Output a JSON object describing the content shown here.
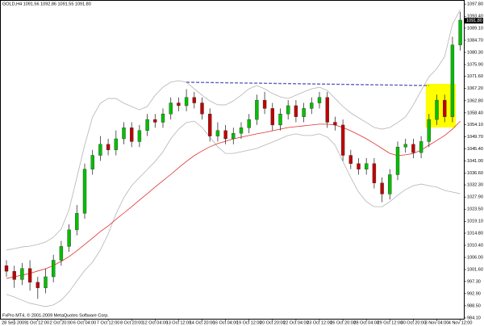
{
  "chart_data": {
    "type": "candlestick",
    "title": "GOLD,H4 1091.56 1092.86 1091.55 1091.80",
    "footer": "FxPro MT4, © 2001-2009 MetaQuotes Software Corp.",
    "categories": [
      null,
      "28 Sep 2009",
      null,
      null,
      "1 Oct 12:00",
      null,
      null,
      "2 Oct 20:00",
      null,
      null,
      "6 Oct 04:00",
      null,
      null,
      "7 Oct 12:00",
      null,
      null,
      "8 Oct 20:00",
      null,
      null,
      "12 Oct 04:00",
      null,
      null,
      "13 Oct 12:00",
      null,
      null,
      "14 Oct 20:00",
      null,
      null,
      "16 Oct 04:00",
      null,
      null,
      "19 Oct 12:00",
      null,
      null,
      "20 Oct 20:00",
      null,
      null,
      "22 Oct 04:00",
      null,
      null,
      "23 Oct 12:00",
      null,
      null,
      "26 Oct 20:00",
      null,
      null,
      "28 Oct 04:00",
      null,
      null,
      "29 Oct 12:00",
      null,
      null,
      "30 Oct 20:00",
      null,
      null,
      "3 Nov 04:00",
      null,
      null,
      "4 Nov 12:00"
    ],
    "open": [
      1003,
      1001,
      998,
      1002,
      997,
      995,
      999,
      1005,
      1010,
      1016,
      1022,
      1038,
      1043,
      1047,
      1045,
      1049,
      1053,
      1048,
      1052,
      1056,
      1055,
      1058,
      1062,
      1061,
      1064,
      1062,
      1058,
      1050,
      1052,
      1049,
      1051,
      1053,
      1056,
      1063,
      1060,
      1054,
      1058,
      1061,
      1057,
      1060,
      1062,
      1064,
      1055,
      1054,
      1043,
      1040,
      1038,
      1040,
      1033,
      1029,
      1036,
      1046,
      1047,
      1044,
      1048,
      1056,
      1063,
      1057,
      1083
    ],
    "high": [
      1005,
      1003,
      1004,
      1005,
      999,
      1002,
      1007,
      1012,
      1018,
      1025,
      1040,
      1045,
      1050,
      1049,
      1052,
      1055,
      1055,
      1054,
      1058,
      1058,
      1060,
      1064,
      1064,
      1067,
      1066,
      1064,
      1060,
      1055,
      1054,
      1053,
      1055,
      1058,
      1065,
      1066,
      1062,
      1060,
      1063,
      1063,
      1062,
      1064,
      1066,
      1066,
      1057,
      1056,
      1045,
      1042,
      1042,
      1042,
      1035,
      1038,
      1048,
      1049,
      1049,
      1050,
      1058,
      1065,
      1065,
      1086,
      1095
    ],
    "low": [
      999,
      995,
      996,
      994,
      991,
      993,
      997,
      1003,
      1008,
      1014,
      1020,
      1036,
      1041,
      1043,
      1043,
      1047,
      1046,
      1046,
      1050,
      1053,
      1053,
      1056,
      1059,
      1059,
      1060,
      1056,
      1048,
      1048,
      1047,
      1047,
      1049,
      1051,
      1054,
      1058,
      1052,
      1052,
      1056,
      1055,
      1055,
      1058,
      1060,
      1053,
      1052,
      1041,
      1038,
      1036,
      1036,
      1031,
      1026,
      1027,
      1034,
      1044,
      1042,
      1042,
      1046,
      1054,
      1055,
      1055,
      1081
    ],
    "close": [
      1001,
      998,
      1002,
      997,
      995,
      999,
      1005,
      1010,
      1016,
      1022,
      1038,
      1043,
      1047,
      1045,
      1049,
      1053,
      1048,
      1052,
      1056,
      1055,
      1058,
      1062,
      1061,
      1064,
      1062,
      1058,
      1050,
      1052,
      1049,
      1051,
      1053,
      1056,
      1063,
      1060,
      1054,
      1058,
      1061,
      1057,
      1060,
      1062,
      1064,
      1055,
      1054,
      1043,
      1040,
      1038,
      1040,
      1033,
      1029,
      1036,
      1046,
      1047,
      1044,
      1048,
      1056,
      1063,
      1057,
      1083,
      1092
    ],
    "up_color": "#00c000",
    "down_color": "#c00000",
    "lines": [
      {
        "color": "#b4b4b4",
        "values": [
          1008.7,
          1009.2,
          1009.8,
          1010.1,
          1010.7,
          1011.6,
          1013.3,
          1016.3,
          1023.3,
          1035.0,
          1046.7,
          1056.9,
          1061.9,
          1063.6,
          1063.6,
          1061.9,
          1060.7,
          1059.5,
          1060.7,
          1064.8,
          1067.7,
          1069.5,
          1070.1,
          1069.5,
          1067.1,
          1064.8,
          1062.7,
          1061.3,
          1061.3,
          1062.7,
          1064.8,
          1067.1,
          1068.3,
          1067.1,
          1065.4,
          1064.2,
          1063.6,
          1064.8,
          1066.0,
          1067.1,
          1067.7,
          1066.5,
          1063.6,
          1060.7,
          1058.4,
          1056.6,
          1054.9,
          1053.1,
          1052.5,
          1053.1,
          1054.9,
          1056.9,
          1061.3,
          1066.5,
          1071.5,
          1074.4,
          1078.8,
          1090.5,
          1095.8
        ]
      },
      {
        "color": "#b4b4b4",
        "values": [
          992.6,
          991.7,
          990.5,
          989.4,
          988.8,
          988.2,
          988.8,
          990.5,
          993.5,
          997.5,
          1001.3,
          1004.3,
          1008.7,
          1014.5,
          1021.8,
          1027.7,
          1032.0,
          1035.0,
          1037.9,
          1040.8,
          1044.3,
          1049.0,
          1052.5,
          1054.9,
          1055.4,
          1053.1,
          1049.6,
          1046.1,
          1043.7,
          1043.7,
          1044.3,
          1044.9,
          1045.5,
          1046.7,
          1047.8,
          1049.0,
          1050.2,
          1050.8,
          1050.2,
          1050.2,
          1050.8,
          1049.6,
          1046.7,
          1040.8,
          1035.0,
          1029.7,
          1026.2,
          1024.4,
          1024.4,
          1026.2,
          1028.5,
          1030.6,
          1032.0,
          1032.6,
          1032.0,
          1031.5,
          1030.3,
          1029.7,
          1029.1
        ]
      },
      {
        "color": "#e03030",
        "values": [
          998.4,
          999.0,
          999.6,
          1000.2,
          1001.1,
          1001.9,
          1003.1,
          1004.6,
          1006.3,
          1008.4,
          1010.7,
          1013.0,
          1015.4,
          1017.4,
          1019.8,
          1022.1,
          1024.4,
          1026.8,
          1029.1,
          1031.5,
          1033.8,
          1036.1,
          1038.5,
          1040.8,
          1042.9,
          1044.6,
          1046.1,
          1047.3,
          1048.1,
          1049.0,
          1049.6,
          1050.2,
          1050.8,
          1051.3,
          1051.9,
          1052.5,
          1053.1,
          1053.4,
          1053.7,
          1054.0,
          1054.3,
          1054.3,
          1054.0,
          1053.1,
          1051.9,
          1050.5,
          1049.0,
          1047.3,
          1045.5,
          1043.7,
          1042.9,
          1043.2,
          1043.7,
          1044.9,
          1046.7,
          1048.4,
          1050.2,
          1052.5,
          1055.4
        ]
      }
    ],
    "trendline": {
      "from": 23,
      "to": 54,
      "values": [
        1069.5,
        1068.3
      ],
      "color": "#6060c0"
    },
    "highlight": {
      "from": 54,
      "to": 57,
      "range": [
        1053.1,
        1068.9
      ],
      "color": "#ffff00"
    },
    "current_price": {
      "value": 1091.8,
      "label": "1091.80"
    },
    "ylim": [
      983.5,
      1099.3
    ],
    "yticks": [
      {
        "value": 1097.8,
        "label": "1097.80"
      },
      {
        "value": 1093.4,
        "label": "1093.40"
      },
      {
        "value": 1089.1,
        "label": "1089.10"
      },
      {
        "value": 1084.7,
        "label": "1084.70"
      },
      {
        "value": 1080.3,
        "label": "1080.30"
      },
      {
        "value": 1075.9,
        "label": "1075.90"
      },
      {
        "value": 1071.6,
        "label": "1071.60"
      },
      {
        "value": 1067.2,
        "label": "1067.20"
      },
      {
        "value": 1062.8,
        "label": "1062.80"
      },
      {
        "value": 1058.4,
        "label": "1058.40"
      },
      {
        "value": 1054.1,
        "label": "1054.10"
      },
      {
        "value": 1049.7,
        "label": "1049.70"
      },
      {
        "value": 1045.4,
        "label": "1045.40"
      },
      {
        "value": 1041,
        "label": "1041.00"
      },
      {
        "value": 1036.6,
        "label": "1036.60"
      },
      {
        "value": 1032.3,
        "label": "1032.30"
      },
      {
        "value": 1027.9,
        "label": "1027.90"
      },
      {
        "value": 1023.5,
        "label": "1023.50"
      },
      {
        "value": 1019.1,
        "label": "1019.10"
      },
      {
        "value": 1014.8,
        "label": "1014.80"
      },
      {
        "value": 1010.4,
        "label": "1010.40"
      },
      {
        "value": 1006,
        "label": "1006.00"
      },
      {
        "value": 1001.6,
        "label": "1001.60"
      },
      {
        "value": 997.3,
        "label": "997.30"
      },
      {
        "value": 992.9,
        "label": "992.90"
      },
      {
        "value": 988.5,
        "label": "988.50"
      },
      {
        "value": 984.1,
        "label": "984.10"
      }
    ]
  }
}
